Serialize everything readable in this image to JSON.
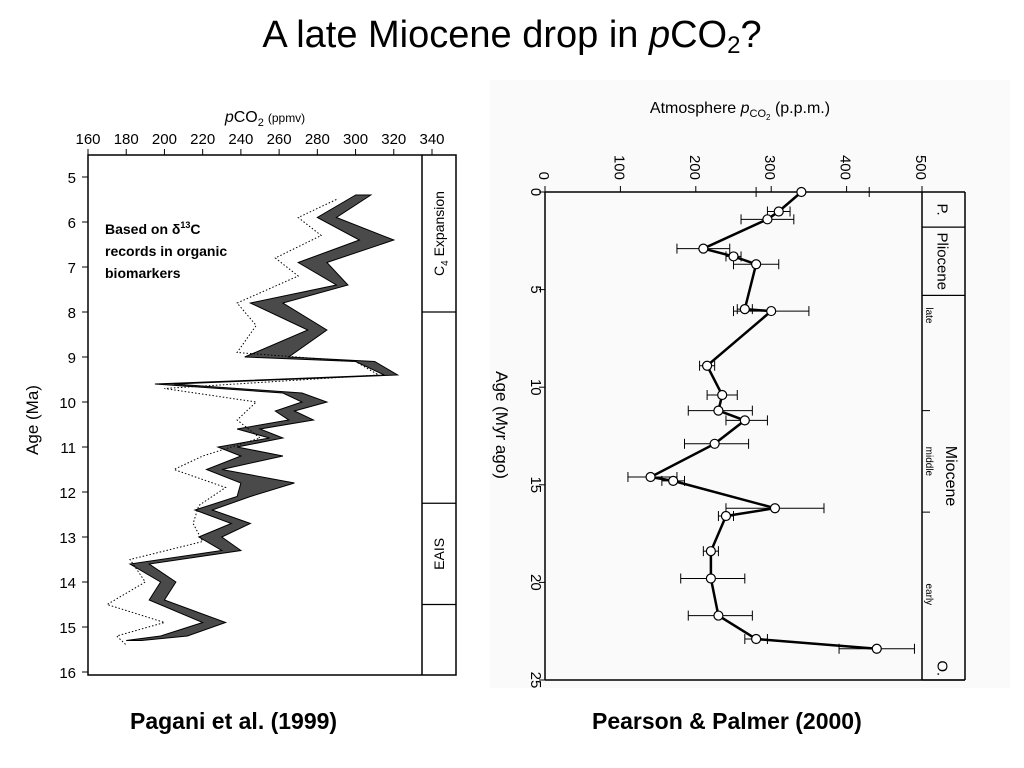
{
  "slide": {
    "title_pre": "A late Miocene drop in ",
    "title_italic": "p",
    "title_mid": "CO",
    "title_sub": "2",
    "title_post": "?"
  },
  "captions": {
    "left": "Pagani et al. (1999)",
    "right": "Pearson & Palmer (2000)"
  },
  "chart_data": [
    {
      "type": "area",
      "source": "Pagani et al. (1999)",
      "x_label": {
        "italic": "p",
        "main": "CO",
        "sub": "2",
        "unit": "(ppmv)"
      },
      "y_label": "Age (Ma)",
      "x_ticks": [
        160,
        180,
        200,
        220,
        240,
        260,
        280,
        300,
        320,
        340
      ],
      "y_ticks": [
        5,
        6,
        7,
        8,
        9,
        10,
        11,
        12,
        13,
        14,
        15,
        16
      ],
      "xlim": [
        160,
        340
      ],
      "ylim": [
        4.6,
        16
      ],
      "y_inverted": true,
      "annotation": {
        "line1_pre": "Based on ",
        "delta": "δ",
        "sup": "13",
        "line1_post": "C",
        "line2": "records in  organic",
        "line3": "biomarkers"
      },
      "side_panel": [
        {
          "label": "C",
          "sub": "4",
          "post": " Expansion",
          "range": [
            4.6,
            8.0
          ]
        },
        {
          "label": "",
          "range": [
            8.0,
            12.25
          ]
        },
        {
          "label": "EAIS",
          "range": [
            12.25,
            14.5
          ]
        },
        {
          "label": "",
          "range": [
            14.5,
            16
          ]
        }
      ],
      "band": {
        "age": [
          5.4,
          5.9,
          6.4,
          6.9,
          7.4,
          7.8,
          8.4,
          9.0,
          9.1,
          9.4,
          9.6,
          9.8,
          10.0,
          10.2,
          10.4,
          10.6,
          10.8,
          11.0,
          11.2,
          11.5,
          11.8,
          12.1,
          12.4,
          12.7,
          13.0,
          13.3,
          13.6,
          14.0,
          14.4,
          14.9,
          15.2,
          15.3
        ],
        "low": [
          300,
          280,
          302,
          270,
          290,
          245,
          275,
          242,
          300,
          315,
          195,
          262,
          272,
          258,
          265,
          238,
          255,
          228,
          240,
          222,
          240,
          238,
          216,
          235,
          218,
          230,
          182,
          198,
          192,
          220,
          198,
          180
        ],
        "high": [
          308,
          290,
          320,
          285,
          296,
          262,
          285,
          265,
          310,
          322,
          205,
          272,
          285,
          268,
          278,
          250,
          262,
          238,
          262,
          230,
          268,
          245,
          225,
          245,
          230,
          240,
          192,
          206,
          200,
          232,
          212,
          188
        ]
      },
      "dotted_line": {
        "age": [
          5.5,
          5.9,
          6.3,
          6.8,
          7.2,
          7.8,
          8.3,
          8.9,
          9.1,
          9.4,
          9.7,
          10.0,
          10.4,
          10.8,
          11.2,
          11.5,
          11.9,
          12.3,
          12.7,
          13.1,
          13.5,
          14.0,
          14.5,
          14.9,
          15.2,
          15.4
        ],
        "pco2": [
          290,
          270,
          282,
          258,
          270,
          238,
          248,
          238,
          300,
          312,
          200,
          248,
          238,
          250,
          220,
          205,
          232,
          218,
          215,
          220,
          182,
          190,
          170,
          200,
          175,
          180
        ]
      }
    },
    {
      "type": "line",
      "source": "Pearson & Palmer (2000)",
      "x_label": {
        "main": "Atmosphere ",
        "italic": "p",
        "sub": "CO",
        "subsub": "2",
        "unit": " (p.p.m.)"
      },
      "y_label": "Age (Myr ago)",
      "x_ticks": [
        0,
        100,
        200,
        300,
        400,
        500
      ],
      "y_ticks": [
        0,
        5,
        10,
        15,
        20,
        25
      ],
      "xlim": [
        0,
        500
      ],
      "ylim": [
        0,
        25
      ],
      "y_inverted": true,
      "epochs": [
        {
          "label": "P.",
          "range": [
            0,
            1.8
          ]
        },
        {
          "label": "Pliocene",
          "range": [
            1.8,
            5.3
          ]
        },
        {
          "label": "O.",
          "range": [
            23.8,
            25
          ]
        }
      ],
      "miocene": {
        "label": "Miocene",
        "range": [
          5.3,
          23.8
        ],
        "sub": [
          {
            "label": "late",
            "range": [
              5.3,
              11.2
            ]
          },
          {
            "label": "middle",
            "range": [
              11.2,
              16.4
            ]
          },
          {
            "label": "early",
            "range": [
              16.4,
              23.8
            ]
          }
        ]
      },
      "series": [
        {
          "points": [
            {
              "age": 0.0,
              "pco2": 340,
              "err": [
                280,
                430
              ]
            },
            {
              "age": 1.0,
              "pco2": 310,
              "err": [
                295,
                325
              ]
            },
            {
              "age": 1.4,
              "pco2": 295,
              "err": [
                260,
                330
              ]
            },
            {
              "age": 2.9,
              "pco2": 210,
              "err": [
                175,
                245
              ]
            },
            {
              "age": 3.3,
              "pco2": 250,
              "err": [
                240,
                260
              ]
            },
            {
              "age": 3.7,
              "pco2": 280,
              "err": [
                250,
                310
              ]
            },
            {
              "age": 6.0,
              "pco2": 265,
              "err": [
                255,
                275
              ]
            },
            {
              "age": 6.1,
              "pco2": 300,
              "err": [
                250,
                350
              ]
            },
            {
              "age": 8.9,
              "pco2": 215,
              "err": [
                205,
                225
              ]
            },
            {
              "age": 10.4,
              "pco2": 235,
              "err": [
                215,
                255
              ]
            },
            {
              "age": 11.2,
              "pco2": 230,
              "err": [
                190,
                275
              ]
            },
            {
              "age": 11.7,
              "pco2": 265,
              "err": [
                240,
                295
              ]
            },
            {
              "age": 12.9,
              "pco2": 225,
              "err": [
                185,
                270
              ]
            },
            {
              "age": 14.6,
              "pco2": 140,
              "err": [
                110,
                175
              ]
            },
            {
              "age": 14.8,
              "pco2": 170,
              "err": [
                155,
                185
              ]
            },
            {
              "age": 16.2,
              "pco2": 305,
              "err": [
                240,
                370
              ]
            },
            {
              "age": 16.6,
              "pco2": 240,
              "err": [
                230,
                250
              ]
            },
            {
              "age": 18.4,
              "pco2": 220,
              "err": [
                210,
                230
              ]
            },
            {
              "age": 19.8,
              "pco2": 220,
              "err": [
                180,
                265
              ]
            },
            {
              "age": 21.7,
              "pco2": 230,
              "err": [
                190,
                275
              ]
            },
            {
              "age": 22.9,
              "pco2": 280,
              "err": [
                265,
                295
              ]
            },
            {
              "age": 23.4,
              "pco2": 440,
              "err": [
                390,
                490
              ]
            }
          ]
        }
      ]
    }
  ]
}
